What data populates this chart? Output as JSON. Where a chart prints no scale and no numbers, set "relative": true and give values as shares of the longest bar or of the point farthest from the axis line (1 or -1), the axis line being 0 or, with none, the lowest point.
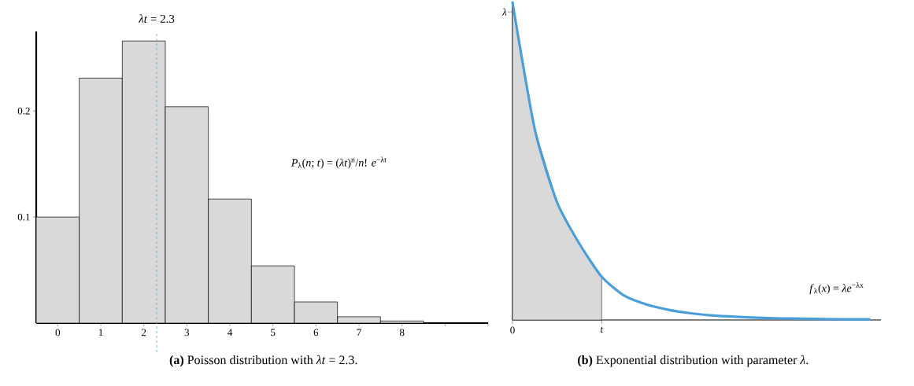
{
  "chart_data": [
    {
      "type": "bar",
      "title": "**(a)** Poisson distribution with *λt* = 2.3.",
      "x": [
        0,
        1,
        2,
        3,
        4,
        5,
        6,
        7,
        8
      ],
      "values": [
        0.1,
        0.231,
        0.266,
        0.204,
        0.117,
        0.054,
        0.02,
        0.006,
        0.002
      ],
      "color": "#d9d9d9",
      "xlim": [
        -0.5,
        10
      ],
      "xticks": [
        0,
        1,
        2,
        3,
        4,
        5,
        6,
        7,
        8,
        {
          "value": 9,
          "label": null
        },
        {
          "value": 10,
          "label": null
        }
      ],
      "ylim": [
        0,
        0.275
      ],
      "yticks": [
        0.1,
        0.2
      ],
      "ref_lines": [
        {
          "axis": "x",
          "value": 2.3,
          "label": "*λt* = 2.3",
          "color": "#4aa8e0",
          "line_style": "dashed"
        }
      ],
      "annotations": [
        "*P*$_{λ}$(*n*; *t*) = (*λt*)$^{n}$/*n*! *e*$^{−λt}$"
      ]
    },
    {
      "type": "line",
      "title": "**(b)** Exponential distribution with parameter *λ*.",
      "ylabel": "*λ*",
      "relative": true,
      "categories": [
        "0",
        null,
        null,
        null,
        "*t*",
        null,
        null,
        null,
        null,
        null,
        null,
        null,
        null,
        null,
        null,
        null,
        null
      ],
      "series": [
        {
          "type": "area",
          "color": "#d9d9d9",
          "values": [
            1.0,
            0.6,
            0.37,
            0.24,
            0.136,
            null,
            null,
            null,
            null,
            null,
            null,
            null,
            null,
            null,
            null,
            null,
            null
          ]
        },
        {
          "type": "line",
          "color": "#4a9fdb",
          "values": [
            1.0,
            0.6,
            0.37,
            0.24,
            0.136,
            0.077,
            0.049,
            0.032,
            0.021,
            0.014,
            0.01,
            0.007,
            0.005,
            0.004,
            0.003,
            0.002,
            0.002
          ]
        }
      ],
      "annotations": [
        "*f*$_{λ}$(*x*) = *λe*$^{−λx}$"
      ]
    }
  ]
}
